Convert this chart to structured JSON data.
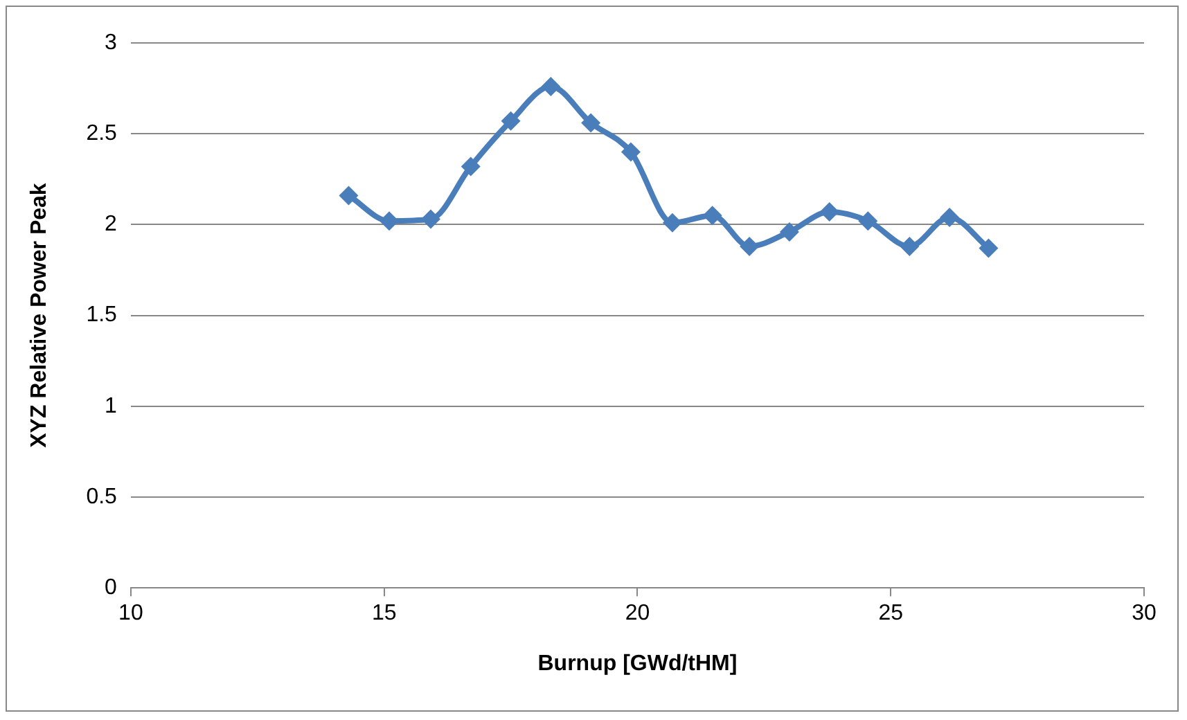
{
  "chart_data": {
    "type": "line",
    "xlabel": "Burnup [GWd/tHM]",
    "ylabel": "XYZ Relative Power Peak",
    "x": [
      14.3,
      15.1,
      15.92,
      16.71,
      17.5,
      18.29,
      19.08,
      19.87,
      20.69,
      21.48,
      22.21,
      23.0,
      23.79,
      24.55,
      25.37,
      26.16,
      26.93
    ],
    "series": [
      {
        "color": "#4a7ebb",
        "values": [
          2.16,
          2.02,
          2.03,
          2.32,
          2.57,
          2.76,
          2.56,
          2.4,
          2.01,
          2.05,
          1.88,
          1.96,
          2.07,
          2.02,
          1.88,
          2.04,
          1.87
        ]
      }
    ],
    "xlim": [
      10,
      30
    ],
    "xticks": [
      10,
      15,
      20,
      25,
      30
    ],
    "ylim": [
      0,
      3
    ],
    "yticks": [
      0,
      0.5,
      1,
      1.5,
      2,
      2.5,
      3
    ],
    "grid": "y",
    "legend": false,
    "marker": "diamond",
    "line_style": "solid"
  }
}
